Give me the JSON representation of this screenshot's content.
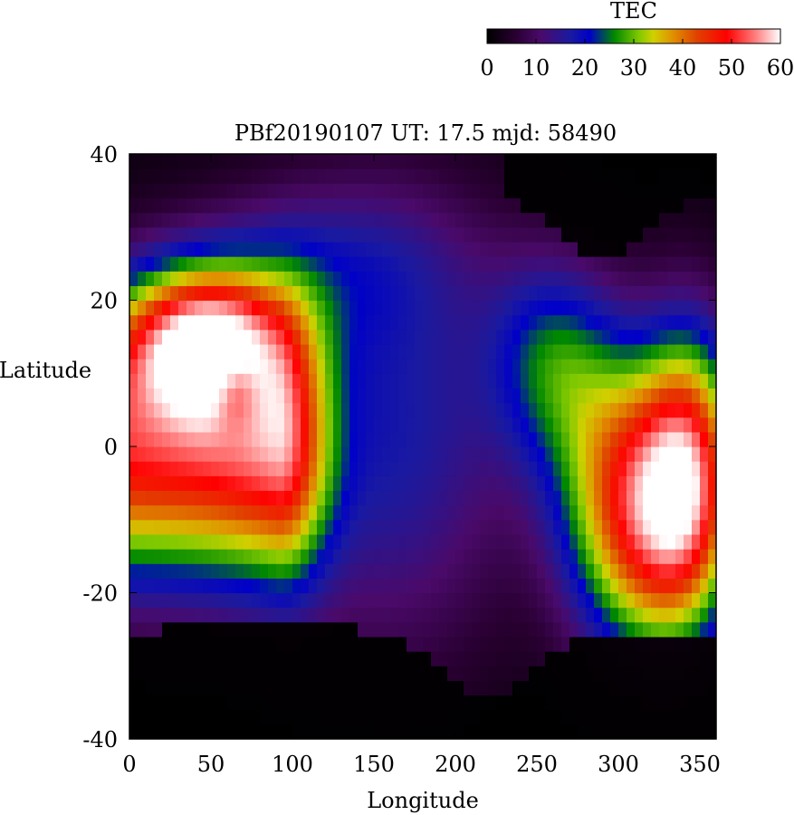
{
  "chart_data": {
    "type": "heatmap",
    "title": "PBf20190107  UT: 17.5  mjd: 58490",
    "xlabel": "Longitude",
    "ylabel": "Latitude",
    "xlim": [
      0,
      360
    ],
    "ylim": [
      -40,
      40
    ],
    "xticks": [
      0,
      50,
      100,
      150,
      200,
      250,
      300,
      350
    ],
    "yticks": [
      -40,
      -20,
      0,
      20,
      40
    ],
    "colorbar": {
      "label": "TEC",
      "range": [
        0,
        60
      ],
      "ticks": [
        0,
        10,
        20,
        30,
        40,
        50,
        60
      ],
      "stops": [
        {
          "value": 0,
          "color": "#000000"
        },
        {
          "value": 6,
          "color": "#2a0033"
        },
        {
          "value": 11,
          "color": "#4a0a6a"
        },
        {
          "value": 17,
          "color": "#1a1aa0"
        },
        {
          "value": 21,
          "color": "#0000c8"
        },
        {
          "value": 26,
          "color": "#008800"
        },
        {
          "value": 31,
          "color": "#7ec800"
        },
        {
          "value": 34,
          "color": "#d0d000"
        },
        {
          "value": 38,
          "color": "#e09000"
        },
        {
          "value": 43,
          "color": "#e04000"
        },
        {
          "value": 49,
          "color": "#ff0000"
        },
        {
          "value": 55,
          "color": "#ff8080"
        },
        {
          "value": 60,
          "color": "#ffffff"
        }
      ]
    },
    "grid": {
      "lon_step": 5,
      "lat_step": 2,
      "lon_start": 0,
      "lat_start": -40
    },
    "tec_lat_profile": [
      {
        "lat": -40,
        "v": 0
      },
      {
        "lat": -28,
        "v": 4
      },
      {
        "lat": -20,
        "v": 20
      },
      {
        "lat": -10,
        "v": 40
      },
      {
        "lat": 0,
        "v": 50
      },
      {
        "lat": 10,
        "v": 44
      },
      {
        "lat": 20,
        "v": 30
      },
      {
        "lat": 28,
        "v": 12
      },
      {
        "lat": 40,
        "v": 2
      }
    ]
  }
}
